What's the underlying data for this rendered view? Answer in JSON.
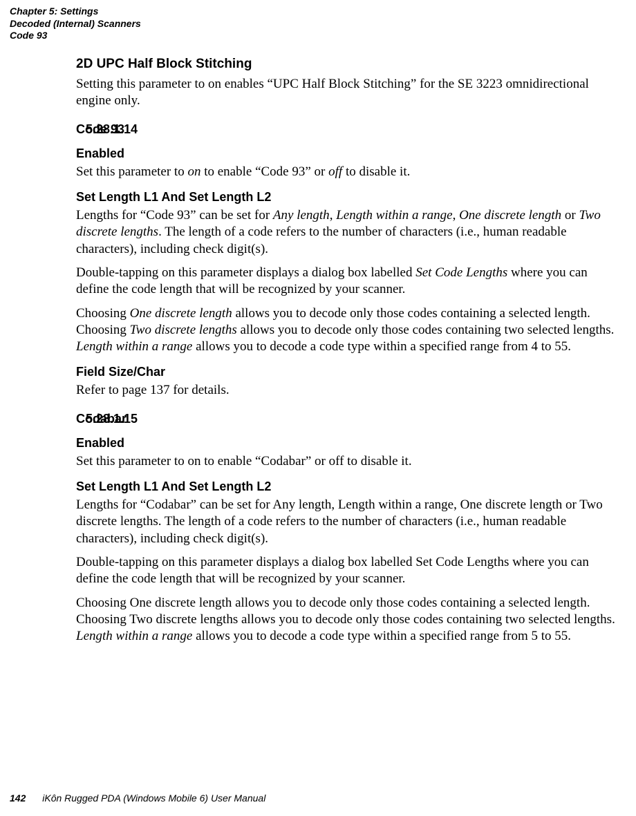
{
  "header": {
    "line1": "Chapter 5: Settings",
    "line2": "Decoded (Internal) Scanners",
    "line3": "Code 93"
  },
  "footer": {
    "page_number": "142",
    "book_title": "iKôn Rugged PDA (Windows Mobile 6) User Manual"
  },
  "s1": {
    "h": "2D UPC Half Block Stitching",
    "p": "Setting this parameter to on enables “UPC Half Block Stitching” for the SE 3223 omnidirectional engine only."
  },
  "sec_code93": {
    "num": "5.28.1.14",
    "title": "Code 93",
    "enabled_h": "Enabled",
    "enabled_p_pre": "Set this parameter to ",
    "enabled_on": "on",
    "enabled_p_mid": " to enable “Code 93” or ",
    "enabled_off": "off",
    "enabled_p_post": " to disable it.",
    "len_h": "Set Length L1 And Set Length L2",
    "len_p1_a": "Lengths for “Code 93” can be set for ",
    "len_any": "Any length",
    "len_sep1": ", ",
    "len_range": "Length within a range",
    "len_sep2": ", ",
    "len_one": "One discrete length",
    "len_or": " or ",
    "len_two": "Two discrete lengths",
    "len_p1_b": ". The length of a code refers to the number of characters (i.e., human readable characters), including check digit(s).",
    "len_p2_a": "Double-tapping on this parameter displays a dialog box labelled ",
    "len_p2_i": "Set Code Lengths",
    "len_p2_b": " where you can define the code length that will be recognized by your scanner.",
    "len_p3_a": "Choosing ",
    "len_p3_i1": "One discrete length",
    "len_p3_b": " allows you to decode only those codes containing a selected length. Choosing ",
    "len_p3_i2": "Two discrete lengths",
    "len_p3_c": " allows you to decode only those codes containing two selected lengths. ",
    "len_p3_i3": "Length within a range",
    "len_p3_d": " allows you to decode a code type within a specified range from 4 to 55.",
    "fs_h": "Field Size/Char",
    "fs_p": "Refer to page 137 for details."
  },
  "sec_codabar": {
    "num": "5.28.1.15",
    "title": "Codabar",
    "enabled_h": "Enabled",
    "enabled_p": "Set this parameter to on to enable “Codabar” or off to disable it.",
    "len_h": "Set Length L1 And Set Length L2",
    "len_p1": "Lengths for “Codabar” can be set for Any length, Length within a range, One discrete length or Two discrete lengths. The length of a code refers to the number of characters (i.e., human readable characters), including check digit(s).",
    "len_p2": "Double-tapping on this parameter displays a dialog box labelled Set Code Lengths where you can define the code length that will be recognized by your scanner.",
    "len_p3_a": "Choosing One discrete length allows you to decode only those codes containing a selected length. Choosing Two discrete lengths allows you to decode only those codes containing two selected lengths. ",
    "len_p3_i": "Length within a range",
    "len_p3_b": " allows you to decode a code type within a specified range from 5 to 55."
  }
}
